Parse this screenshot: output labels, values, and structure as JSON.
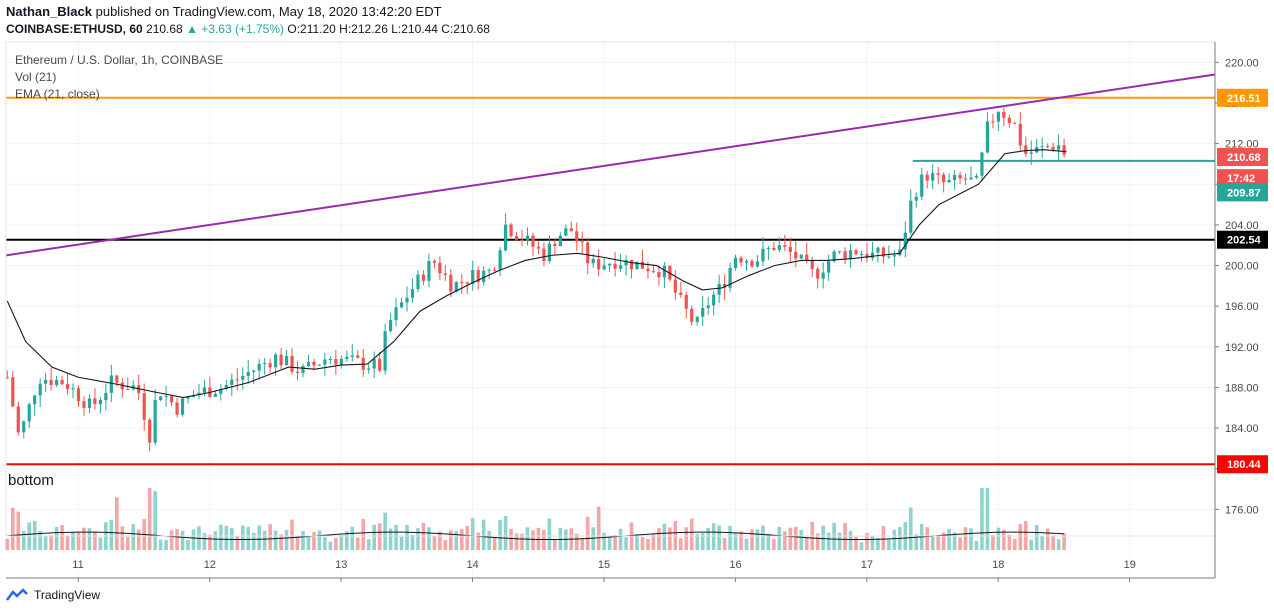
{
  "header": {
    "author": "Nathan_Black",
    "published_text": "published on TradingView.com, May 18, 2020 13:42:20 EDT",
    "symbol": "COINBASE:ETHUSD, 60",
    "last": "210.68",
    "change": "▲ +3.63 (+1.75%)",
    "ohlc": "O:211.20 H:212.26 L:210.44 C:210.68"
  },
  "legend": {
    "title": "Ethereum / U.S. Dollar, 1h, COINBASE",
    "vol": "Vol (21)",
    "ema": "EMA (21, close)"
  },
  "annotation": "bottom",
  "footer": {
    "brand": "TradingView"
  },
  "colors": {
    "up": "#26a69a",
    "down": "#ef5350",
    "vol_up": "#8fd3cc",
    "vol_down": "#f4a6a4",
    "orange": "#ff9800",
    "purple": "#9c27b0",
    "black": "#000000",
    "red": "#ff0000",
    "teal_line": "#26a69a"
  },
  "chart_data": {
    "type": "candlestick",
    "y_axis": {
      "ylim": [
        172,
        222
      ],
      "ticks": [
        176,
        180,
        184,
        188,
        192,
        196,
        200,
        204,
        208,
        212,
        216,
        220
      ]
    },
    "y_tick_labels": [
      "176.00",
      "180.00",
      "184.00",
      "188.00",
      "192.00",
      "196.00",
      "200.00",
      "204.00",
      "208.00",
      "212.00",
      "216.00",
      "220.00"
    ],
    "x_axis": {
      "ticks": [
        11,
        12,
        13,
        14,
        15,
        16,
        17,
        18,
        19
      ],
      "tick_labels": [
        "11",
        "12",
        "13",
        "14",
        "15",
        "16",
        "17",
        "18",
        "19"
      ],
      "xlim": [
        10.45,
        19.65
      ]
    },
    "close_path": [
      [
        10.46,
        189
      ],
      [
        10.55,
        183
      ],
      [
        10.7,
        189
      ],
      [
        10.9,
        188.5
      ],
      [
        11.1,
        186
      ],
      [
        11.25,
        188.5
      ],
      [
        11.45,
        188
      ],
      [
        11.55,
        183
      ],
      [
        11.6,
        188
      ],
      [
        11.75,
        186
      ],
      [
        11.9,
        187.5
      ],
      [
        12.1,
        188
      ],
      [
        12.3,
        189.5
      ],
      [
        12.5,
        191
      ],
      [
        12.7,
        189.5
      ],
      [
        12.9,
        191
      ],
      [
        13.1,
        190.5
      ],
      [
        13.3,
        190
      ],
      [
        13.35,
        194
      ],
      [
        13.5,
        197
      ],
      [
        13.7,
        200.5
      ],
      [
        13.85,
        198
      ],
      [
        14.0,
        199
      ],
      [
        14.15,
        199.5
      ],
      [
        14.25,
        204
      ],
      [
        14.4,
        202.5
      ],
      [
        14.55,
        201
      ],
      [
        14.65,
        203
      ],
      [
        14.75,
        203.5
      ],
      [
        14.9,
        200
      ],
      [
        15.1,
        200.5
      ],
      [
        15.3,
        200
      ],
      [
        15.45,
        199.5
      ],
      [
        15.6,
        196
      ],
      [
        15.7,
        194
      ],
      [
        15.8,
        196.5
      ],
      [
        15.9,
        198
      ],
      [
        16.0,
        201
      ],
      [
        16.15,
        200.5
      ],
      [
        16.3,
        202
      ],
      [
        16.45,
        201
      ],
      [
        16.6,
        199
      ],
      [
        16.75,
        201
      ],
      [
        16.9,
        201.5
      ],
      [
        17.05,
        201
      ],
      [
        17.25,
        201
      ],
      [
        17.35,
        207
      ],
      [
        17.45,
        209
      ],
      [
        17.6,
        208
      ],
      [
        17.75,
        208.5
      ],
      [
        17.85,
        208
      ],
      [
        17.9,
        213
      ],
      [
        18.0,
        215.5
      ],
      [
        18.12,
        214
      ],
      [
        18.2,
        211
      ],
      [
        18.35,
        211.5
      ],
      [
        18.45,
        212
      ],
      [
        18.52,
        210.7
      ]
    ],
    "ema_path": [
      [
        10.46,
        196.5
      ],
      [
        10.6,
        192.5
      ],
      [
        10.8,
        190
      ],
      [
        11.0,
        189
      ],
      [
        11.3,
        188.3
      ],
      [
        11.6,
        187.5
      ],
      [
        11.8,
        187
      ],
      [
        12.0,
        187.5
      ],
      [
        12.3,
        188.5
      ],
      [
        12.6,
        190
      ],
      [
        12.8,
        189.8
      ],
      [
        13.0,
        190.2
      ],
      [
        13.2,
        190.3
      ],
      [
        13.4,
        192.5
      ],
      [
        13.6,
        195.5
      ],
      [
        13.8,
        197
      ],
      [
        14.0,
        198.3
      ],
      [
        14.2,
        199.5
      ],
      [
        14.4,
        200.5
      ],
      [
        14.6,
        201
      ],
      [
        14.8,
        201.2
      ],
      [
        15.0,
        200.8
      ],
      [
        15.2,
        200.3
      ],
      [
        15.4,
        200
      ],
      [
        15.6,
        198.5
      ],
      [
        15.75,
        197.6
      ],
      [
        15.9,
        197.8
      ],
      [
        16.1,
        199
      ],
      [
        16.3,
        200
      ],
      [
        16.5,
        200.5
      ],
      [
        16.7,
        200.5
      ],
      [
        16.9,
        200.7
      ],
      [
        17.1,
        201
      ],
      [
        17.25,
        201.2
      ],
      [
        17.4,
        204
      ],
      [
        17.55,
        206
      ],
      [
        17.7,
        207
      ],
      [
        17.85,
        208
      ],
      [
        17.95,
        209.5
      ],
      [
        18.05,
        211
      ],
      [
        18.2,
        211.3
      ],
      [
        18.35,
        211.4
      ],
      [
        18.52,
        211.2
      ]
    ],
    "horizontal_levels": [
      {
        "label": "216.51",
        "value": 216.51,
        "color": "#ff9800"
      },
      {
        "label": "202.54",
        "value": 202.54,
        "color": "#000000"
      },
      {
        "label": "180.44",
        "value": 180.44,
        "color": "#ff0000"
      }
    ],
    "resistance_segment": {
      "x0": 17.35,
      "x1": 19.65,
      "value": 210.3
    },
    "trendline": {
      "x0": 10.45,
      "y0": 201,
      "x1": 19.65,
      "y1": 218.8
    },
    "price_tags": [
      {
        "label": "210.68",
        "value": 210.68,
        "color": "#ef5350"
      },
      {
        "label": "17:42",
        "value": 208.6,
        "color": "#ef5350"
      },
      {
        "label": "209.87",
        "value": 207.2,
        "color": "#26a69a"
      }
    ],
    "volume_peaks": [
      {
        "x": 11.3,
        "level": 0.85,
        "up": false
      },
      {
        "x": 11.55,
        "level": 1.0,
        "up": false
      },
      {
        "x": 11.6,
        "level": 0.95,
        "up": true
      },
      {
        "x": 14.25,
        "level": 0.55,
        "up": true
      },
      {
        "x": 14.95,
        "level": 0.7,
        "up": false
      },
      {
        "x": 17.3,
        "level": 0.45,
        "up": true
      },
      {
        "x": 17.9,
        "level": 1.0,
        "up": true
      }
    ]
  }
}
